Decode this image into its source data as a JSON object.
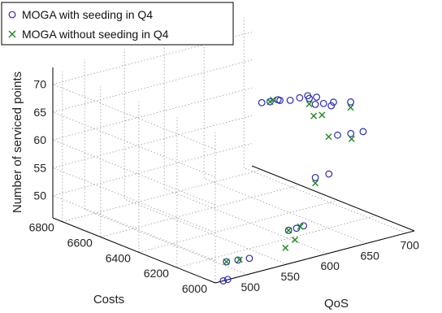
{
  "chart_data": {
    "type": "scatter",
    "title": "",
    "xlabel": "QoS",
    "ylabel": "Costs",
    "zlabel": "Number of serviced points",
    "xlim": [
      460,
      710
    ],
    "ylim": [
      6000,
      6850
    ],
    "zlim": [
      46,
      73
    ],
    "x_ticks": [
      "500",
      "550",
      "600",
      "650",
      "700"
    ],
    "y_ticks": [
      "6000",
      "6200",
      "6400",
      "6600",
      "6800"
    ],
    "z_ticks": [
      "50",
      "55",
      "60",
      "65",
      "70"
    ],
    "grid": true,
    "legend_position": "top-left",
    "series": [
      {
        "name": "MOGA with seeding in Q4",
        "marker": "circle",
        "color": "#2b2bb4",
        "points": [
          {
            "x": 470,
            "y": 6000,
            "z": 46
          },
          {
            "x": 476,
            "y": 6002,
            "z": 46
          },
          {
            "x": 498,
            "y": 6100,
            "z": 47
          },
          {
            "x": 510,
            "y": 6090,
            "z": 47
          },
          {
            "x": 522,
            "y": 6080,
            "z": 47
          },
          {
            "x": 552,
            "y": 6000,
            "z": 52
          },
          {
            "x": 562,
            "y": 6000,
            "z": 52
          },
          {
            "x": 572,
            "y": 6005,
            "z": 52
          },
          {
            "x": 588,
            "y": 6010,
            "z": 60
          },
          {
            "x": 605,
            "y": 6010,
            "z": 60
          },
          {
            "x": 622,
            "y": 6035,
            "z": 66
          },
          {
            "x": 635,
            "y": 6020,
            "z": 66
          },
          {
            "x": 648,
            "y": 6010,
            "z": 66
          },
          {
            "x": 642,
            "y": 6050,
            "z": 71
          },
          {
            "x": 620,
            "y": 6060,
            "z": 71
          },
          {
            "x": 600,
            "y": 6060,
            "z": 72
          },
          {
            "x": 608,
            "y": 6050,
            "z": 72
          },
          {
            "x": 618,
            "y": 6040,
            "z": 72
          },
          {
            "x": 596,
            "y": 6075,
            "z": 73
          },
          {
            "x": 604,
            "y": 6070,
            "z": 73
          },
          {
            "x": 578,
            "y": 6100,
            "z": 73
          },
          {
            "x": 590,
            "y": 6100,
            "z": 73
          },
          {
            "x": 600,
            "y": 6100,
            "z": 73
          },
          {
            "x": 570,
            "y": 6120,
            "z": 73
          },
          {
            "x": 552,
            "y": 6140,
            "z": 73
          },
          {
            "x": 560,
            "y": 6130,
            "z": 73
          },
          {
            "x": 570,
            "y": 6130,
            "z": 73
          }
        ]
      },
      {
        "name": "MOGA without seeding in Q4",
        "marker": "x",
        "color": "#1f8a1f",
        "points": [
          {
            "x": 498,
            "y": 6100,
            "z": 47
          },
          {
            "x": 512,
            "y": 6090,
            "z": 47
          },
          {
            "x": 548,
            "y": 6000,
            "z": 49
          },
          {
            "x": 552,
            "y": 6000,
            "z": 52
          },
          {
            "x": 560,
            "y": 6000,
            "z": 50
          },
          {
            "x": 568,
            "y": 6005,
            "z": 52
          },
          {
            "x": 588,
            "y": 6010,
            "z": 59
          },
          {
            "x": 612,
            "y": 6040,
            "z": 66
          },
          {
            "x": 636,
            "y": 6020,
            "z": 65
          },
          {
            "x": 642,
            "y": 6050,
            "z": 70
          },
          {
            "x": 598,
            "y": 6060,
            "z": 70
          },
          {
            "x": 606,
            "y": 6050,
            "z": 70
          },
          {
            "x": 596,
            "y": 6075,
            "z": 72
          },
          {
            "x": 560,
            "y": 6130,
            "z": 73
          },
          {
            "x": 566,
            "y": 6140,
            "z": 73
          }
        ]
      }
    ]
  }
}
